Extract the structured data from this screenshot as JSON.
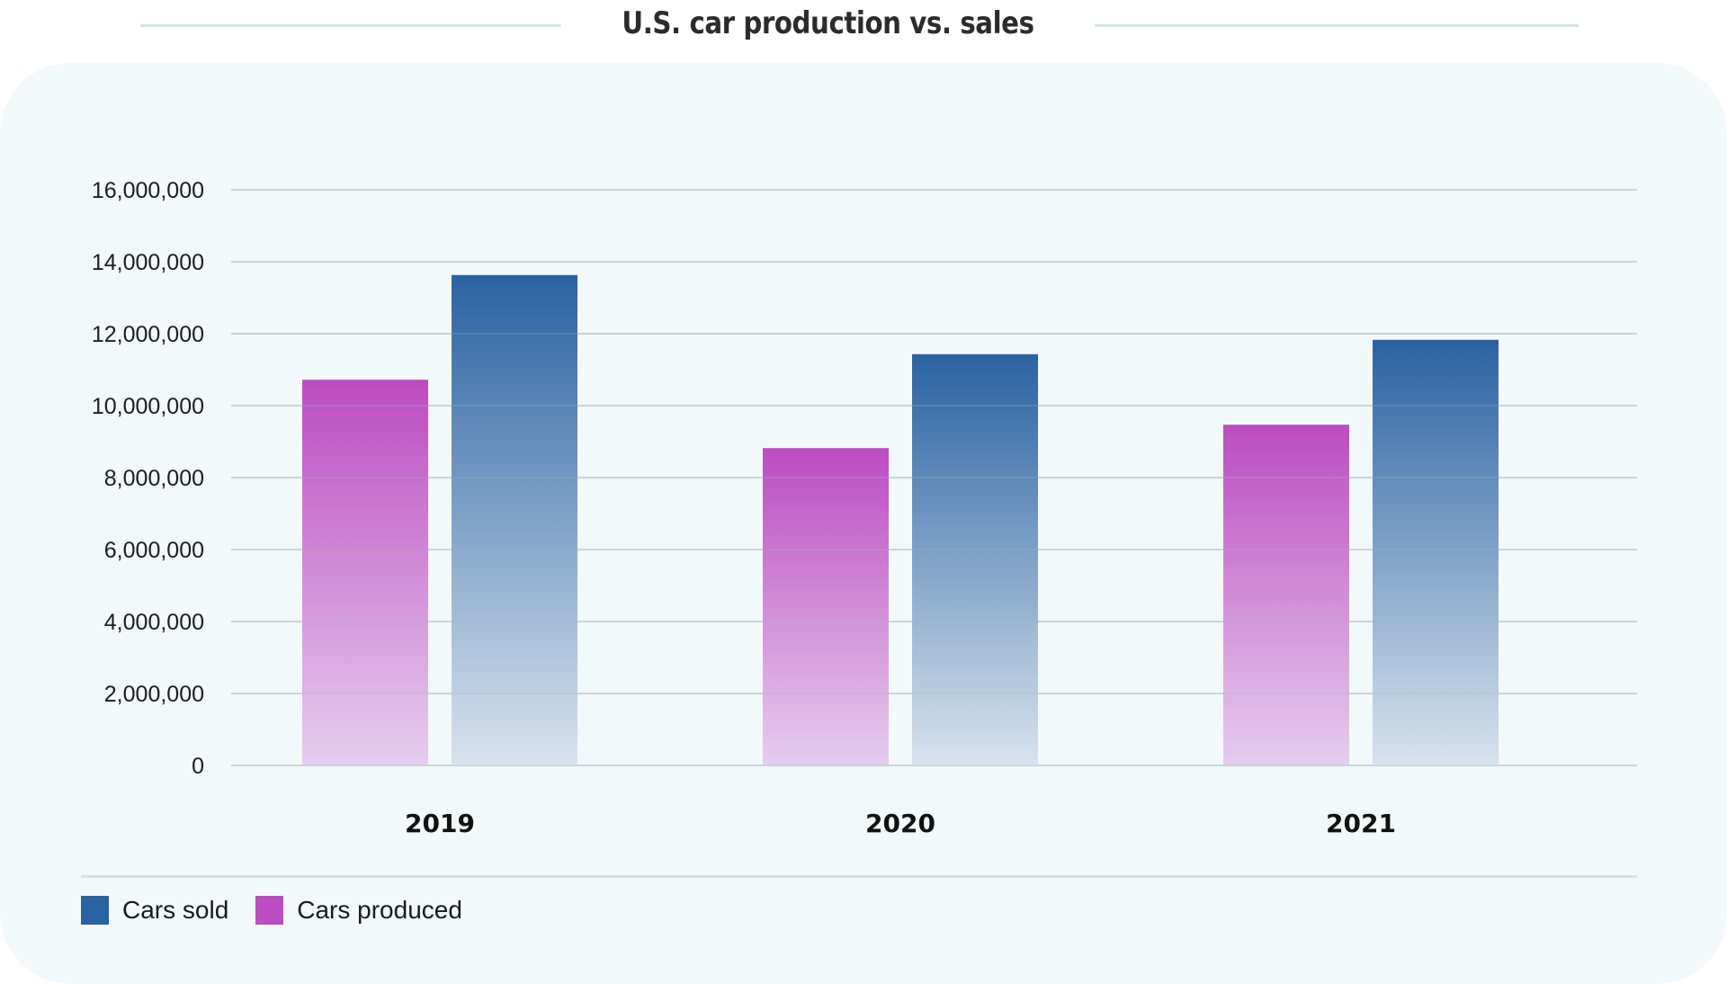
{
  "title": "U.S. car production vs. sales",
  "colors": {
    "sold_top": "#2a62a2",
    "sold_bottom": "#d8e3ee",
    "produced_top": "#bc4cc1",
    "produced_bottom": "#e6cdee",
    "grid": "#d1e2e4",
    "legend_sold": "#2a62a2",
    "legend_produced": "#bc4cc1"
  },
  "legend": [
    {
      "name": "Cars sold",
      "color_key": "legend_sold"
    },
    {
      "name": "Cars produced",
      "color_key": "legend_produced"
    }
  ],
  "chart_data": {
    "type": "bar",
    "title": "U.S. car production vs. sales",
    "xlabel": "",
    "ylabel": "",
    "categories": [
      "2019",
      "2020",
      "2021"
    ],
    "series": [
      {
        "name": "Cars produced",
        "values": [
          10720000,
          8820000,
          9470000
        ]
      },
      {
        "name": "Cars sold",
        "values": [
          13630000,
          11430000,
          11830000
        ]
      }
    ],
    "ylim": [
      0,
      16000000
    ],
    "yticks": [
      0,
      2000000,
      4000000,
      6000000,
      8000000,
      10000000,
      12000000,
      14000000,
      16000000
    ],
    "ytick_labels": [
      "0",
      "2,000,000",
      "4,000,000",
      "6,000,000",
      "8,000,000",
      "10,000,000",
      "12,000,000",
      "14,000,000",
      "16,000,000"
    ],
    "grid": true,
    "legend_position": "bottom-left"
  }
}
